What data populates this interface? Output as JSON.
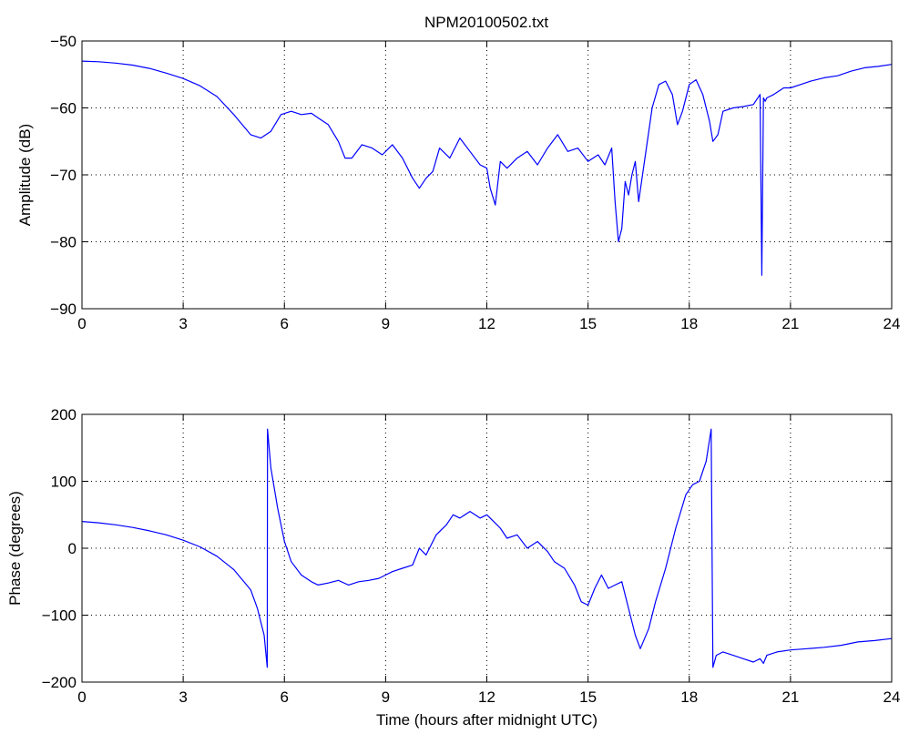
{
  "figure": {
    "title": "NPM20100502.txt"
  },
  "chart_data": [
    {
      "type": "line",
      "title": "NPM20100502.txt",
      "xlabel": "",
      "ylabel": "Amplitude (dB)",
      "xlim": [
        0,
        24
      ],
      "ylim": [
        -90,
        -50
      ],
      "xticks": [
        0,
        3,
        6,
        9,
        12,
        15,
        18,
        21,
        24
      ],
      "xtick_labels": [
        "0",
        "3",
        "6",
        "9",
        "12",
        "15",
        "18",
        "21",
        "24"
      ],
      "yticks": [
        -90,
        -80,
        -70,
        -60,
        -50
      ],
      "ytick_labels": [
        "−90",
        "−80",
        "−70",
        "−60",
        "−50"
      ],
      "grid": true,
      "color": "#0000ff",
      "series": [
        {
          "x": [
            0,
            0.5,
            1,
            1.5,
            2,
            2.5,
            3,
            3.5,
            4,
            4.5,
            5,
            5.3,
            5.6,
            5.9,
            6.2,
            6.5,
            6.8,
            7.0,
            7.3,
            7.6,
            7.8,
            8.0,
            8.3,
            8.6,
            8.9,
            9.2,
            9.5,
            9.8,
            10.0,
            10.2,
            10.4,
            10.6,
            10.9,
            11.2,
            11.5,
            11.8,
            12.0,
            12.1,
            12.25,
            12.4,
            12.6,
            12.9,
            13.2,
            13.5,
            13.8,
            14.1,
            14.4,
            14.7,
            15.0,
            15.3,
            15.5,
            15.7,
            15.8,
            15.9,
            16.0,
            16.1,
            16.2,
            16.3,
            16.4,
            16.5,
            16.7,
            16.9,
            17.1,
            17.3,
            17.5,
            17.65,
            17.8,
            18.0,
            18.2,
            18.4,
            18.6,
            18.7,
            18.85,
            19.0,
            19.3,
            19.6,
            19.9,
            20.1,
            20.15,
            20.2,
            20.25,
            20.3,
            20.5,
            20.8,
            21.0,
            21.3,
            21.6,
            22.0,
            22.4,
            22.8,
            23.2,
            23.6,
            24
          ],
          "y": [
            -53,
            -53.1,
            -53.3,
            -53.6,
            -54.1,
            -54.8,
            -55.6,
            -56.7,
            -58.3,
            -61.0,
            -64.0,
            -64.5,
            -63.5,
            -61.0,
            -60.5,
            -61.0,
            -60.8,
            -61.5,
            -62.5,
            -65.0,
            -67.5,
            -67.5,
            -65.5,
            -66.0,
            -67.0,
            -65.5,
            -67.5,
            -70.5,
            -72.0,
            -70.5,
            -69.5,
            -66.0,
            -67.5,
            -64.5,
            -66.5,
            -68.5,
            -69.0,
            -72.0,
            -74.5,
            -68.0,
            -69.0,
            -67.5,
            -66.5,
            -68.5,
            -66.0,
            -64.0,
            -66.5,
            -66.0,
            -68.0,
            -67.0,
            -68.5,
            -66.0,
            -74.0,
            -80.0,
            -78.0,
            -71.0,
            -73.0,
            -70.0,
            -68.0,
            -74.0,
            -67.0,
            -60.0,
            -56.5,
            -56.0,
            -58.0,
            -62.5,
            -60.5,
            -56.5,
            -55.8,
            -58.0,
            -62.0,
            -65.0,
            -64.0,
            -60.5,
            -60.0,
            -59.8,
            -59.5,
            -58.0,
            -85.0,
            -58.5,
            -59.0,
            -58.5,
            -58.0,
            -57.0,
            -57.0,
            -56.5,
            -56.0,
            -55.5,
            -55.2,
            -54.5,
            -54.0,
            -53.8,
            -53.5
          ]
        }
      ]
    },
    {
      "type": "line",
      "title": "",
      "xlabel": "Time (hours after midnight UTC)",
      "ylabel": "Phase (degrees)",
      "xlim": [
        0,
        24
      ],
      "ylim": [
        -200,
        200
      ],
      "xticks": [
        0,
        3,
        6,
        9,
        12,
        15,
        18,
        21,
        24
      ],
      "xtick_labels": [
        "0",
        "3",
        "6",
        "9",
        "12",
        "15",
        "18",
        "21",
        "24"
      ],
      "yticks": [
        -200,
        -100,
        0,
        100,
        200
      ],
      "ytick_labels": [
        "−200",
        "−100",
        "0",
        "100",
        "200"
      ],
      "grid": true,
      "color": "#0000ff",
      "series": [
        {
          "x": [
            0,
            0.5,
            1,
            1.5,
            2,
            2.5,
            3,
            3.5,
            4,
            4.5,
            5,
            5.2,
            5.4,
            5.49,
            5.5,
            5.6,
            5.8,
            6.0,
            6.2,
            6.5,
            6.8,
            7.0,
            7.3,
            7.6,
            7.9,
            8.2,
            8.5,
            8.8,
            9.0,
            9.2,
            9.5,
            9.8,
            10.0,
            10.2,
            10.5,
            10.8,
            11.0,
            11.2,
            11.5,
            11.8,
            12.0,
            12.2,
            12.4,
            12.6,
            12.9,
            13.2,
            13.5,
            13.8,
            14.0,
            14.3,
            14.6,
            14.8,
            15.0,
            15.2,
            15.4,
            15.6,
            15.8,
            16.0,
            16.2,
            16.4,
            16.55,
            16.8,
            17.0,
            17.3,
            17.6,
            17.9,
            18.1,
            18.3,
            18.5,
            18.65,
            18.7,
            18.8,
            19.0,
            19.3,
            19.6,
            19.9,
            20.1,
            20.2,
            20.3,
            20.6,
            21.0,
            21.5,
            22.0,
            22.5,
            23.0,
            23.5,
            24
          ],
          "y": [
            40,
            38,
            35,
            31,
            26,
            20,
            12,
            2,
            -12,
            -32,
            -62,
            -90,
            -130,
            -178,
            178,
            120,
            60,
            10,
            -20,
            -40,
            -50,
            -55,
            -52,
            -48,
            -55,
            -50,
            -48,
            -45,
            -40,
            -35,
            -30,
            -25,
            0,
            -10,
            20,
            35,
            50,
            45,
            55,
            45,
            50,
            40,
            30,
            15,
            20,
            0,
            10,
            -5,
            -20,
            -30,
            -55,
            -80,
            -85,
            -60,
            -40,
            -60,
            -55,
            -50,
            -90,
            -130,
            -150,
            -120,
            -80,
            -30,
            30,
            80,
            95,
            100,
            130,
            178,
            -178,
            -160,
            -155,
            -160,
            -165,
            -170,
            -165,
            -172,
            -160,
            -155,
            -152,
            -150,
            -148,
            -145,
            -140,
            -138,
            -135
          ]
        }
      ]
    }
  ]
}
